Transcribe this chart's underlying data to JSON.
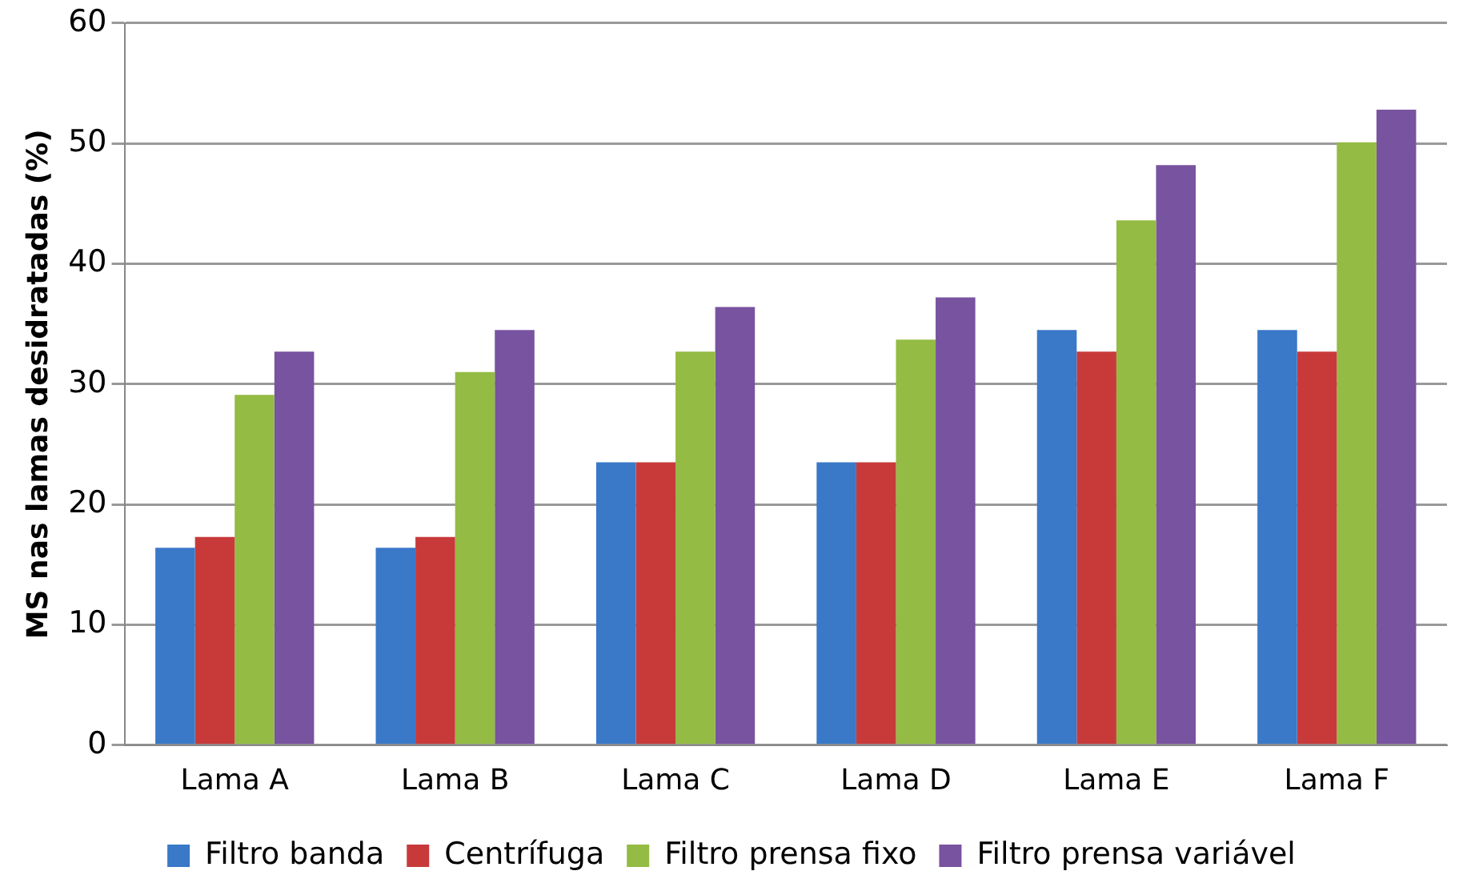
{
  "chart_data": {
    "type": "bar",
    "ylabel": "MS nas lamas desidratadas (%)",
    "categories": [
      "Lama A",
      "Lama B",
      "Lama C",
      "Lama D",
      "Lama E",
      "Lama F"
    ],
    "series": [
      {
        "name": "Filtro banda",
        "color": "#3a78c8",
        "values": [
          16.4,
          16.4,
          23.5,
          23.5,
          34.5,
          34.5
        ]
      },
      {
        "name": "Centrífuga",
        "color": "#c83a3a",
        "values": [
          17.3,
          17.3,
          23.5,
          23.5,
          32.7,
          32.7
        ]
      },
      {
        "name": "Filtro prensa fixo",
        "color": "#94bb44",
        "values": [
          29.1,
          31.0,
          32.7,
          33.7,
          43.6,
          50.1
        ]
      },
      {
        "name": "Filtro prensa variável",
        "color": "#7853a0",
        "values": [
          32.7,
          34.5,
          36.4,
          37.2,
          48.2,
          52.8
        ]
      }
    ],
    "ylim": [
      0,
      60
    ],
    "yticks": [
      0,
      10,
      20,
      30,
      40,
      50,
      60
    ],
    "grid": "y",
    "legend": "bottom"
  }
}
